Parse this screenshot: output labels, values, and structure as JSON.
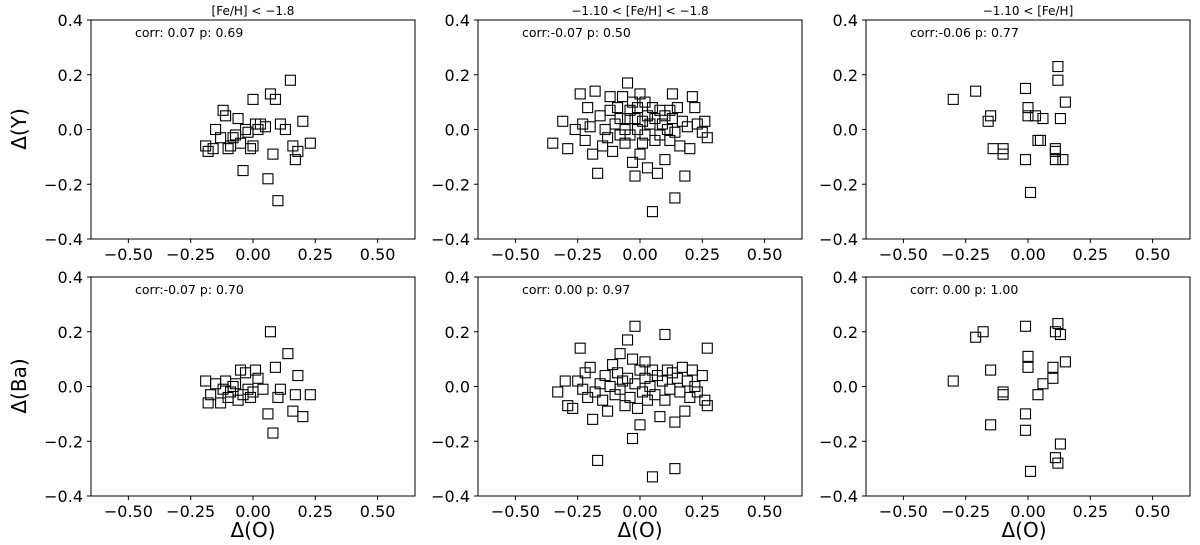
{
  "xlabel": "Δ(O)",
  "chart_data": [
    {
      "type": "scatter",
      "title": "[Fe/H] < −1.8",
      "annotation": "corr: 0.07 p: 0.69",
      "xlabel": "",
      "ylabel": "Δ(Y)",
      "xlim": [
        -0.65,
        0.65
      ],
      "ylim": [
        -0.4,
        0.4
      ],
      "xticks": [
        "−0.50",
        "−0.25",
        "0.00",
        "0.25",
        "0.50"
      ],
      "yticks": [
        "−0.4",
        "−0.2",
        "0.0",
        "0.2",
        "0.4"
      ],
      "points": [
        [
          -0.19,
          -0.06
        ],
        [
          -0.18,
          -0.08
        ],
        [
          -0.16,
          -0.07
        ],
        [
          -0.15,
          0.0
        ],
        [
          -0.13,
          -0.03
        ],
        [
          -0.12,
          0.07
        ],
        [
          -0.11,
          0.05
        ],
        [
          -0.1,
          -0.07
        ],
        [
          -0.09,
          -0.06
        ],
        [
          -0.08,
          -0.03
        ],
        [
          -0.07,
          -0.02
        ],
        [
          -0.06,
          0.04
        ],
        [
          -0.05,
          -0.05
        ],
        [
          -0.04,
          -0.15
        ],
        [
          -0.03,
          0.0
        ],
        [
          -0.02,
          -0.01
        ],
        [
          -0.01,
          -0.07
        ],
        [
          0.0,
          -0.06
        ],
        [
          0.0,
          0.11
        ],
        [
          0.01,
          0.02
        ],
        [
          0.02,
          0.0
        ],
        [
          0.03,
          0.02
        ],
        [
          0.05,
          0.01
        ],
        [
          0.06,
          -0.18
        ],
        [
          0.07,
          0.13
        ],
        [
          0.08,
          -0.09
        ],
        [
          0.09,
          0.11
        ],
        [
          0.1,
          -0.26
        ],
        [
          0.11,
          0.02
        ],
        [
          0.13,
          0.0
        ],
        [
          0.15,
          0.18
        ],
        [
          0.16,
          -0.06
        ],
        [
          0.17,
          -0.11
        ],
        [
          0.18,
          -0.08
        ],
        [
          0.2,
          0.03
        ],
        [
          0.23,
          -0.05
        ]
      ]
    },
    {
      "type": "scatter",
      "title": "−1.10 < [Fe/H] < −1.8",
      "annotation": "corr:-0.07 p: 0.50",
      "xlabel": "",
      "ylabel": "",
      "xlim": [
        -0.65,
        0.65
      ],
      "ylim": [
        -0.4,
        0.4
      ],
      "xticks": [
        "−0.50",
        "−0.25",
        "0.00",
        "0.25",
        "0.50"
      ],
      "yticks": [
        "−0.4",
        "−0.2",
        "0.0",
        "0.2",
        "0.4"
      ],
      "points": [
        [
          -0.35,
          -0.05
        ],
        [
          -0.31,
          0.03
        ],
        [
          -0.29,
          -0.07
        ],
        [
          -0.26,
          0.0
        ],
        [
          -0.24,
          0.13
        ],
        [
          -0.23,
          0.02
        ],
        [
          -0.22,
          -0.04
        ],
        [
          -0.21,
          0.08
        ],
        [
          -0.2,
          0.01
        ],
        [
          -0.19,
          -0.09
        ],
        [
          -0.18,
          0.14
        ],
        [
          -0.17,
          -0.16
        ],
        [
          -0.16,
          0.05
        ],
        [
          -0.15,
          -0.06
        ],
        [
          -0.14,
          0.0
        ],
        [
          -0.13,
          -0.03
        ],
        [
          -0.12,
          0.12
        ],
        [
          -0.12,
          0.07
        ],
        [
          -0.11,
          -0.08
        ],
        [
          -0.1,
          0.02
        ],
        [
          -0.09,
          0.08
        ],
        [
          -0.08,
          -0.02
        ],
        [
          -0.08,
          0.04
        ],
        [
          -0.07,
          0.12
        ],
        [
          -0.06,
          0.0
        ],
        [
          -0.06,
          -0.05
        ],
        [
          -0.05,
          0.17
        ],
        [
          -0.05,
          0.04
        ],
        [
          -0.04,
          0.07
        ],
        [
          -0.04,
          -0.02
        ],
        [
          -0.03,
          0.1
        ],
        [
          -0.03,
          -0.12
        ],
        [
          -0.02,
          0.04
        ],
        [
          -0.02,
          -0.17
        ],
        [
          -0.01,
          0.08
        ],
        [
          -0.01,
          0.0
        ],
        [
          0.0,
          -0.09
        ],
        [
          0.0,
          0.13
        ],
        [
          0.01,
          -0.05
        ],
        [
          0.01,
          0.03
        ],
        [
          0.02,
          0.1
        ],
        [
          0.02,
          -0.02
        ],
        [
          0.03,
          0.05
        ],
        [
          0.03,
          -0.14
        ],
        [
          0.04,
          0.02
        ],
        [
          0.05,
          -0.3
        ],
        [
          0.05,
          0.08
        ],
        [
          0.06,
          -0.04
        ],
        [
          0.06,
          0.04
        ],
        [
          0.07,
          -0.16
        ],
        [
          0.08,
          0.07
        ],
        [
          0.08,
          -0.02
        ],
        [
          0.09,
          0.02
        ],
        [
          0.1,
          0.05
        ],
        [
          0.1,
          -0.11
        ],
        [
          0.11,
          0.0
        ],
        [
          0.12,
          0.07
        ],
        [
          0.12,
          -0.04
        ],
        [
          0.13,
          0.13
        ],
        [
          0.13,
          0.04
        ],
        [
          0.14,
          -0.25
        ],
        [
          0.14,
          -0.01
        ],
        [
          0.15,
          0.08
        ],
        [
          0.16,
          -0.06
        ],
        [
          0.17,
          0.03
        ],
        [
          0.18,
          -0.17
        ],
        [
          0.19,
          0.01
        ],
        [
          0.2,
          -0.07
        ],
        [
          0.21,
          0.12
        ],
        [
          0.22,
          0.08
        ],
        [
          0.23,
          0.02
        ],
        [
          0.25,
          -0.01
        ],
        [
          0.26,
          0.03
        ],
        [
          0.27,
          -0.03
        ]
      ]
    },
    {
      "type": "scatter",
      "title": "−1.10 < [Fe/H]",
      "annotation": "corr:-0.06 p: 0.77",
      "xlabel": "",
      "ylabel": "",
      "xlim": [
        -0.65,
        0.65
      ],
      "ylim": [
        -0.4,
        0.4
      ],
      "xticks": [
        "−0.50",
        "−0.25",
        "0.00",
        "0.25",
        "0.50"
      ],
      "yticks": [
        "−0.4",
        "−0.2",
        "0.0",
        "0.2",
        "0.4"
      ],
      "points": [
        [
          -0.3,
          0.11
        ],
        [
          -0.21,
          0.14
        ],
        [
          -0.16,
          0.03
        ],
        [
          -0.15,
          0.05
        ],
        [
          -0.14,
          -0.07
        ],
        [
          -0.1,
          -0.07
        ],
        [
          -0.1,
          -0.09
        ],
        [
          -0.01,
          0.15
        ],
        [
          -0.01,
          -0.11
        ],
        [
          0.0,
          0.05
        ],
        [
          0.0,
          0.08
        ],
        [
          0.01,
          -0.23
        ],
        [
          0.03,
          0.05
        ],
        [
          0.04,
          -0.04
        ],
        [
          0.05,
          -0.04
        ],
        [
          0.06,
          0.04
        ],
        [
          0.11,
          -0.07
        ],
        [
          0.11,
          -0.08
        ],
        [
          0.11,
          -0.11
        ],
        [
          0.12,
          0.23
        ],
        [
          0.12,
          0.18
        ],
        [
          0.13,
          0.04
        ],
        [
          0.14,
          -0.11
        ],
        [
          0.15,
          0.1
        ]
      ]
    },
    {
      "type": "scatter",
      "title": "",
      "annotation": "corr:-0.07 p: 0.70",
      "xlabel": "Δ(O)",
      "ylabel": "Δ(Ba)",
      "xlim": [
        -0.65,
        0.65
      ],
      "ylim": [
        -0.4,
        0.4
      ],
      "xticks": [
        "−0.50",
        "−0.25",
        "0.00",
        "0.25",
        "0.50"
      ],
      "yticks": [
        "−0.4",
        "−0.2",
        "0.0",
        "0.2",
        "0.4"
      ],
      "points": [
        [
          -0.19,
          0.02
        ],
        [
          -0.18,
          -0.06
        ],
        [
          -0.17,
          -0.03
        ],
        [
          -0.15,
          0.01
        ],
        [
          -0.13,
          -0.06
        ],
        [
          -0.12,
          -0.01
        ],
        [
          -0.11,
          0.02
        ],
        [
          -0.1,
          -0.04
        ],
        [
          -0.09,
          -0.02
        ],
        [
          -0.08,
          0.0
        ],
        [
          -0.07,
          0.01
        ],
        [
          -0.06,
          -0.05
        ],
        [
          -0.05,
          0.06
        ],
        [
          -0.04,
          -0.03
        ],
        [
          -0.03,
          0.05
        ],
        [
          -0.02,
          -0.01
        ],
        [
          -0.01,
          -0.04
        ],
        [
          0.0,
          -0.02
        ],
        [
          0.01,
          0.06
        ],
        [
          0.02,
          0.03
        ],
        [
          0.04,
          -0.01
        ],
        [
          0.06,
          -0.1
        ],
        [
          0.07,
          0.2
        ],
        [
          0.08,
          -0.17
        ],
        [
          0.09,
          0.07
        ],
        [
          0.1,
          -0.04
        ],
        [
          0.11,
          -0.01
        ],
        [
          0.14,
          0.12
        ],
        [
          0.16,
          -0.09
        ],
        [
          0.17,
          -0.03
        ],
        [
          0.18,
          0.04
        ],
        [
          0.2,
          -0.11
        ],
        [
          0.23,
          -0.03
        ]
      ]
    },
    {
      "type": "scatter",
      "title": "",
      "annotation": "corr: 0.00 p: 0.97",
      "xlabel": "Δ(O)",
      "ylabel": "",
      "xlim": [
        -0.65,
        0.65
      ],
      "ylim": [
        -0.4,
        0.4
      ],
      "xticks": [
        "−0.50",
        "−0.25",
        "0.00",
        "0.25",
        "0.50"
      ],
      "yticks": [
        "−0.4",
        "−0.2",
        "0.0",
        "0.2",
        "0.4"
      ],
      "points": [
        [
          -0.33,
          -0.02
        ],
        [
          -0.3,
          0.02
        ],
        [
          -0.29,
          -0.07
        ],
        [
          -0.27,
          -0.08
        ],
        [
          -0.25,
          0.02
        ],
        [
          -0.24,
          0.14
        ],
        [
          -0.23,
          -0.01
        ],
        [
          -0.22,
          0.05
        ],
        [
          -0.21,
          -0.04
        ],
        [
          -0.2,
          0.07
        ],
        [
          -0.19,
          -0.12
        ],
        [
          -0.18,
          -0.02
        ],
        [
          -0.17,
          -0.27
        ],
        [
          -0.16,
          0.01
        ],
        [
          -0.15,
          -0.05
        ],
        [
          -0.14,
          0.04
        ],
        [
          -0.13,
          -0.09
        ],
        [
          -0.12,
          0.0
        ],
        [
          -0.11,
          0.08
        ],
        [
          -0.1,
          -0.03
        ],
        [
          -0.09,
          0.05
        ],
        [
          -0.08,
          -0.01
        ],
        [
          -0.08,
          0.12
        ],
        [
          -0.07,
          0.02
        ],
        [
          -0.06,
          -0.07
        ],
        [
          -0.05,
          0.03
        ],
        [
          -0.05,
          0.17
        ],
        [
          -0.04,
          -0.04
        ],
        [
          -0.03,
          0.1
        ],
        [
          -0.03,
          -0.19
        ],
        [
          -0.02,
          0.22
        ],
        [
          -0.02,
          0.01
        ],
        [
          -0.01,
          -0.08
        ],
        [
          0.0,
          0.06
        ],
        [
          0.0,
          -0.14
        ],
        [
          0.01,
          -0.02
        ],
        [
          0.02,
          0.09
        ],
        [
          0.02,
          0.03
        ],
        [
          0.03,
          -0.05
        ],
        [
          0.04,
          0.0
        ],
        [
          0.05,
          -0.33
        ],
        [
          0.05,
          0.06
        ],
        [
          0.06,
          -0.03
        ],
        [
          0.07,
          0.04
        ],
        [
          0.08,
          -0.11
        ],
        [
          0.09,
          0.02
        ],
        [
          0.1,
          0.19
        ],
        [
          0.1,
          -0.05
        ],
        [
          0.11,
          0.06
        ],
        [
          0.12,
          -0.01
        ],
        [
          0.13,
          0.05
        ],
        [
          0.14,
          -0.3
        ],
        [
          0.14,
          -0.13
        ],
        [
          0.15,
          0.03
        ],
        [
          0.16,
          -0.02
        ],
        [
          0.17,
          0.07
        ],
        [
          0.18,
          -0.09
        ],
        [
          0.19,
          0.02
        ],
        [
          0.2,
          -0.04
        ],
        [
          0.21,
          0.06
        ],
        [
          0.22,
          0.0
        ],
        [
          0.23,
          -0.02
        ],
        [
          0.25,
          0.04
        ],
        [
          0.26,
          -0.05
        ],
        [
          0.27,
          0.14
        ],
        [
          0.27,
          -0.07
        ]
      ]
    },
    {
      "type": "scatter",
      "title": "",
      "annotation": "corr: 0.00 p: 1.00",
      "xlabel": "Δ(O)",
      "ylabel": "",
      "xlim": [
        -0.65,
        0.65
      ],
      "ylim": [
        -0.4,
        0.4
      ],
      "xticks": [
        "−0.50",
        "−0.25",
        "0.00",
        "0.25",
        "0.50"
      ],
      "yticks": [
        "−0.4",
        "−0.2",
        "0.0",
        "0.2",
        "0.4"
      ],
      "points": [
        [
          -0.3,
          0.02
        ],
        [
          -0.21,
          0.18
        ],
        [
          -0.18,
          0.2
        ],
        [
          -0.15,
          0.06
        ],
        [
          -0.15,
          -0.14
        ],
        [
          -0.1,
          -0.03
        ],
        [
          -0.1,
          -0.02
        ],
        [
          -0.01,
          0.22
        ],
        [
          -0.01,
          -0.1
        ],
        [
          -0.01,
          -0.16
        ],
        [
          0.0,
          0.07
        ],
        [
          0.0,
          0.11
        ],
        [
          0.01,
          -0.31
        ],
        [
          0.04,
          -0.03
        ],
        [
          0.06,
          0.01
        ],
        [
          0.1,
          0.03
        ],
        [
          0.11,
          0.2
        ],
        [
          0.11,
          -0.26
        ],
        [
          0.12,
          0.23
        ],
        [
          0.12,
          -0.28
        ],
        [
          0.13,
          0.19
        ],
        [
          0.13,
          -0.21
        ],
        [
          0.15,
          0.09
        ],
        [
          0.1,
          0.07
        ]
      ]
    }
  ]
}
